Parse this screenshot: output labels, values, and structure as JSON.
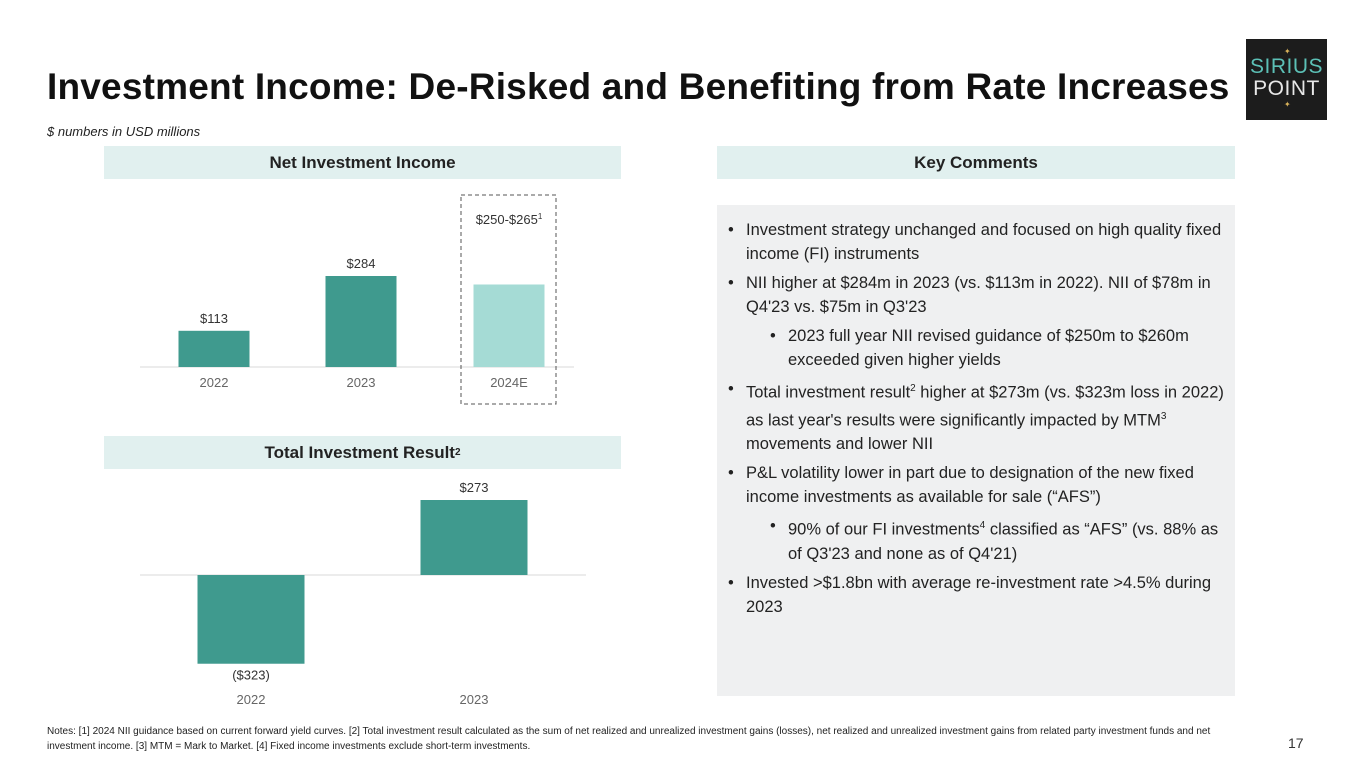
{
  "title": "Investment Income: De-Risked and Benefiting from Rate Increases",
  "subtitle": "$ numbers in USD millions",
  "logo": {
    "line1": "SIRIUS",
    "line2": "POINT"
  },
  "headers": {
    "nii": "Net Investment Income",
    "tir": "Total Investment Result",
    "tir_sup": "2",
    "comments": "Key Comments"
  },
  "chart_data": [
    {
      "type": "bar",
      "title": "Net Investment Income",
      "categories": [
        "2022",
        "2023",
        "2024E"
      ],
      "values": [
        113,
        284,
        257.5
      ],
      "data_labels": [
        "$113",
        "$284",
        "$250-$265"
      ],
      "data_label_sup": [
        "",
        "",
        "1"
      ],
      "range_2024E": [
        250,
        265
      ],
      "colors": [
        "#3f9a8e",
        "#3f9a8e",
        "#a5dbd5"
      ],
      "ylim": [
        0,
        300
      ],
      "grid": false
    },
    {
      "type": "bar",
      "title": "Total Investment Result",
      "categories": [
        "2022",
        "2023"
      ],
      "values": [
        -323,
        273
      ],
      "data_labels": [
        "($323)",
        "$273"
      ],
      "colors": [
        "#3f9a8e",
        "#3f9a8e"
      ],
      "ylim": [
        -323,
        273
      ],
      "grid": false
    }
  ],
  "comments": [
    {
      "level": 1,
      "text": "Investment strategy unchanged and focused on high quality fixed income (FI) instruments"
    },
    {
      "level": 1,
      "text": "NII higher at $284m in 2023 (vs. $113m in 2022). NII of $78m in Q4'23 vs. $75m in Q3'23"
    },
    {
      "level": 2,
      "text": "2023 full year NII revised guidance of $250m to $260m exceeded given higher yields"
    },
    {
      "level": 1,
      "text": "Total investment result",
      "sup": "2",
      "rest": " higher at $273m (vs. $323m loss in 2022) as last year's results were significantly impacted by MTM",
      "sup2": "3",
      "rest2": " movements and lower NII"
    },
    {
      "level": 1,
      "text": "P&L volatility lower in part due to designation of the new fixed income investments as available for sale (“AFS”)"
    },
    {
      "level": 2,
      "text": "90% of our FI investments",
      "sup": "4",
      "rest": " classified as “AFS” (vs. 88% as of Q3'23 and none as of Q4'21)"
    },
    {
      "level": 1,
      "text": "Invested >$1.8bn with average re-investment rate >4.5% during 2023"
    }
  ],
  "notes": "Notes: [1] 2024 NII guidance based on current forward yield curves. [2] Total investment result calculated as the sum of net realized and unrealized investment gains (losses), net realized and unrealized investment gains from related party investment funds and net investment income. [3] MTM = Mark to Market. [4] Fixed income investments exclude short-term investments.",
  "page_number": "17"
}
